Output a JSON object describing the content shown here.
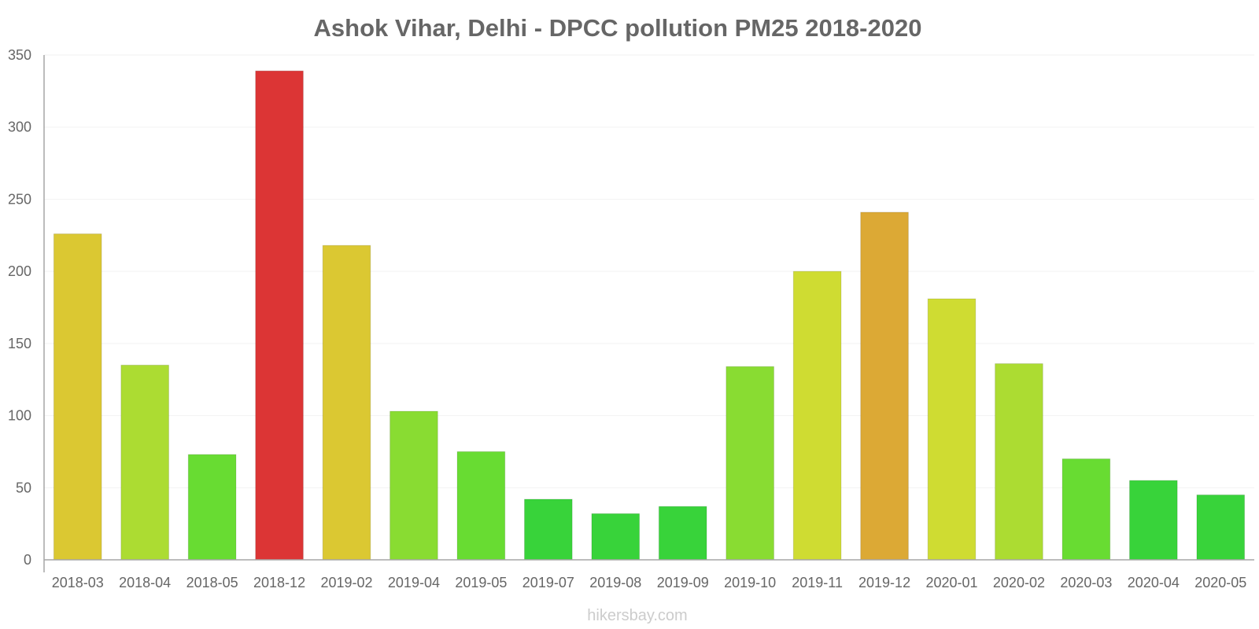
{
  "chart_data": {
    "type": "bar",
    "title": "Ashok Vihar, Delhi - DPCC pollution PM25 2018-2020",
    "xlabel": "",
    "ylabel": "",
    "ylim": [
      0,
      350
    ],
    "yticks": [
      0,
      50,
      100,
      150,
      200,
      250,
      300,
      350
    ],
    "categories": [
      "2018-03",
      "2018-04",
      "2018-05",
      "2018-12",
      "2019-02",
      "2019-04",
      "2019-05",
      "2019-07",
      "2019-08",
      "2019-09",
      "2019-10",
      "2019-11",
      "2019-12",
      "2020-01",
      "2020-02",
      "2020-03",
      "2020-04",
      "2020-05"
    ],
    "values": [
      226,
      135,
      73,
      339,
      218,
      103,
      75,
      42,
      32,
      37,
      134,
      200,
      241,
      181,
      136,
      70,
      55,
      45
    ],
    "colors": [
      "#dbc832",
      "#acdc32",
      "#68dc32",
      "#dc3535",
      "#dbc832",
      "#89dc32",
      "#68dc32",
      "#38d33a",
      "#38d33a",
      "#38d33a",
      "#89dc32",
      "#cfdc32",
      "#dca935",
      "#cfdc32",
      "#acdc32",
      "#68dc32",
      "#38d33a",
      "#38d33a"
    ],
    "grid": true,
    "legend": "none"
  },
  "credit": "hikersbay.com"
}
